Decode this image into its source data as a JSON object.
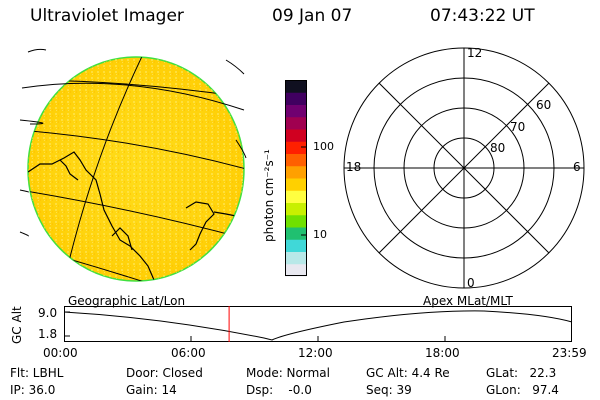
{
  "header": {
    "instrument": "Ultraviolet Imager",
    "date": "09 Jan 07",
    "time": "07:43:22 UT"
  },
  "colorbar": {
    "title": "photon cm⁻²s⁻¹",
    "tick_100": "100",
    "tick_10": "10",
    "colors": [
      "#e8e8f0",
      "#b8e8e8",
      "#40d8d8",
      "#20c070",
      "#70e000",
      "#c8f000",
      "#ffff40",
      "#ffd000",
      "#ffa000",
      "#ff6000",
      "#ff2000",
      "#d00020",
      "#a00050",
      "#700070",
      "#400060",
      "#101020"
    ]
  },
  "polar": {
    "mlt_top": "12",
    "mlt_bottom": "0",
    "mlt_left": "18",
    "mlt_right": "6",
    "lat_60": "60",
    "lat_70": "70",
    "lat_80": "80"
  },
  "labels": {
    "left_coord": "Geographic Lat/Lon",
    "right_coord": "Apex MLat/MLT",
    "gc_alt_axis": "GC Alt",
    "y_max": "9.0",
    "y_min": "1.8"
  },
  "timeline": {
    "ticks": [
      "00:00",
      "06:00",
      "12:00",
      "18:00",
      "23:59"
    ],
    "current_time_fraction": 0.325
  },
  "status": {
    "flt": "Flt: LBHL",
    "ip": "IP: 36.0",
    "door": "Door: Closed",
    "gain": "Gain: 14",
    "mode": "Mode: Normal",
    "dsp": "Dsp:    -0.0",
    "gcalt": "GC Alt: 4.4 Re",
    "seq": "Seq: 39",
    "glat": "GLat:   22.3",
    "glon": "GLon:   97.4"
  }
}
